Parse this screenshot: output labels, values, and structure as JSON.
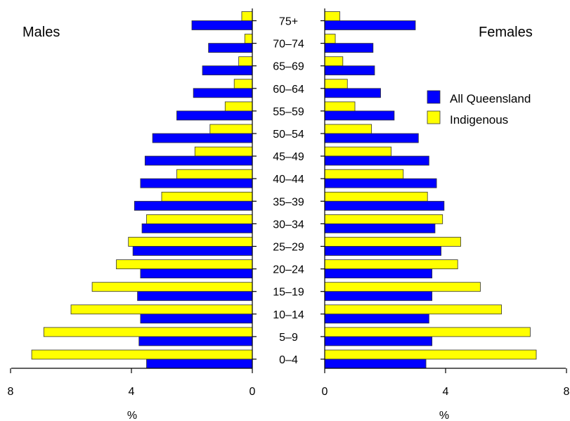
{
  "chart_data": {
    "type": "bar",
    "orientation": "horizontal",
    "layout": "population-pyramid",
    "categories": [
      "0–4",
      "5–9",
      "10–14",
      "15–19",
      "20–24",
      "25–29",
      "30–34",
      "35–39",
      "40–44",
      "45–49",
      "50–54",
      "55–59",
      "60–64",
      "65–69",
      "70–74",
      "75+"
    ],
    "panels": [
      {
        "title": "Males",
        "direction": "left",
        "series": [
          {
            "name": "Indigenous",
            "color": "#ffff00",
            "values": [
              7.3,
              6.9,
              6.0,
              5.3,
              4.5,
              4.1,
              3.5,
              3.0,
              2.5,
              1.9,
              1.4,
              0.9,
              0.6,
              0.45,
              0.25,
              0.35
            ]
          },
          {
            "name": "All Queensland",
            "color": "#0000ff",
            "values": [
              3.5,
              3.75,
              3.7,
              3.8,
              3.7,
              3.95,
              3.65,
              3.9,
              3.7,
              3.55,
              3.3,
              2.5,
              1.95,
              1.65,
              1.45,
              2.0
            ]
          }
        ]
      },
      {
        "title": "Females",
        "direction": "right",
        "series": [
          {
            "name": "Indigenous",
            "color": "#ffff00",
            "values": [
              7.0,
              6.8,
              5.85,
              5.15,
              4.4,
              4.5,
              3.9,
              3.4,
              2.6,
              2.2,
              1.55,
              1.0,
              0.75,
              0.6,
              0.35,
              0.5
            ]
          },
          {
            "name": "All Queensland",
            "color": "#0000ff",
            "values": [
              3.35,
              3.55,
              3.45,
              3.55,
              3.55,
              3.85,
              3.65,
              3.95,
              3.7,
              3.45,
              3.1,
              2.3,
              1.85,
              1.65,
              1.6,
              3.0
            ]
          }
        ]
      }
    ],
    "xlim": [
      0,
      8
    ],
    "xticks": [
      "8",
      "4",
      "0",
      "0",
      "4",
      "8"
    ],
    "xlabel": "%",
    "legend": {
      "position": "right",
      "entries": [
        {
          "label": "All Queensland",
          "color": "#0000ff"
        },
        {
          "label": "Indigenous",
          "color": "#ffff00"
        }
      ]
    },
    "grid": false
  }
}
